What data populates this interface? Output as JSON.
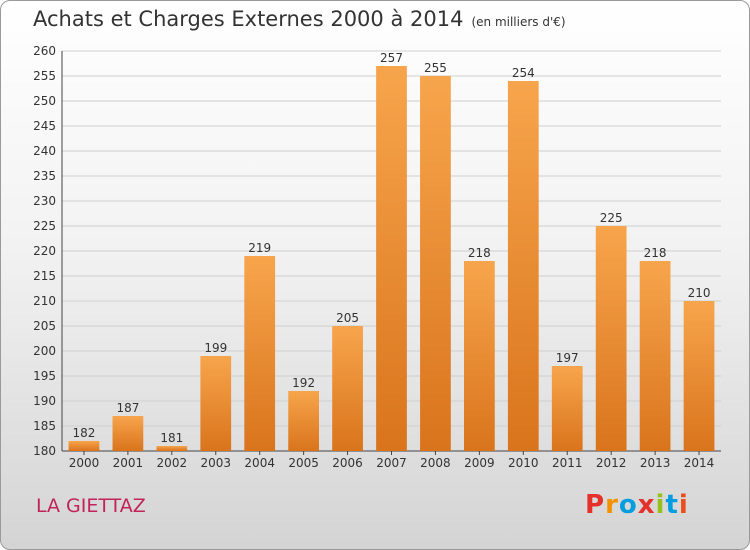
{
  "header": {
    "title": "Achats et Charges Externes 2000 à 2014",
    "unit": "(en milliers d'€)"
  },
  "footer": {
    "commune": "LA GIETTAZ",
    "logo_text": "Proxiti",
    "logo_colors": [
      "#e4312b",
      "#f39200",
      "#009ee0",
      "#e4312b",
      "#95c11f",
      "#009ee0",
      "#e94e1b"
    ]
  },
  "colors": {
    "bar_light": "#f7a54c",
    "bar_dark": "#d9741c",
    "title": "#333333",
    "commune": "#c0245a"
  },
  "chart_data": {
    "type": "bar",
    "categories": [
      "2000",
      "2001",
      "2002",
      "2003",
      "2004",
      "2005",
      "2006",
      "2007",
      "2008",
      "2009",
      "2010",
      "2011",
      "2012",
      "2013",
      "2014"
    ],
    "values": [
      182,
      187,
      181,
      199,
      219,
      192,
      205,
      257,
      255,
      218,
      254,
      197,
      225,
      218,
      210
    ],
    "title": "Achats et Charges Externes 2000 à 2014",
    "ylim": [
      180,
      260
    ],
    "yticks": [
      180,
      185,
      190,
      195,
      200,
      205,
      210,
      215,
      220,
      225,
      230,
      235,
      240,
      245,
      250,
      255,
      260
    ],
    "grid": true,
    "data_labels": true
  }
}
